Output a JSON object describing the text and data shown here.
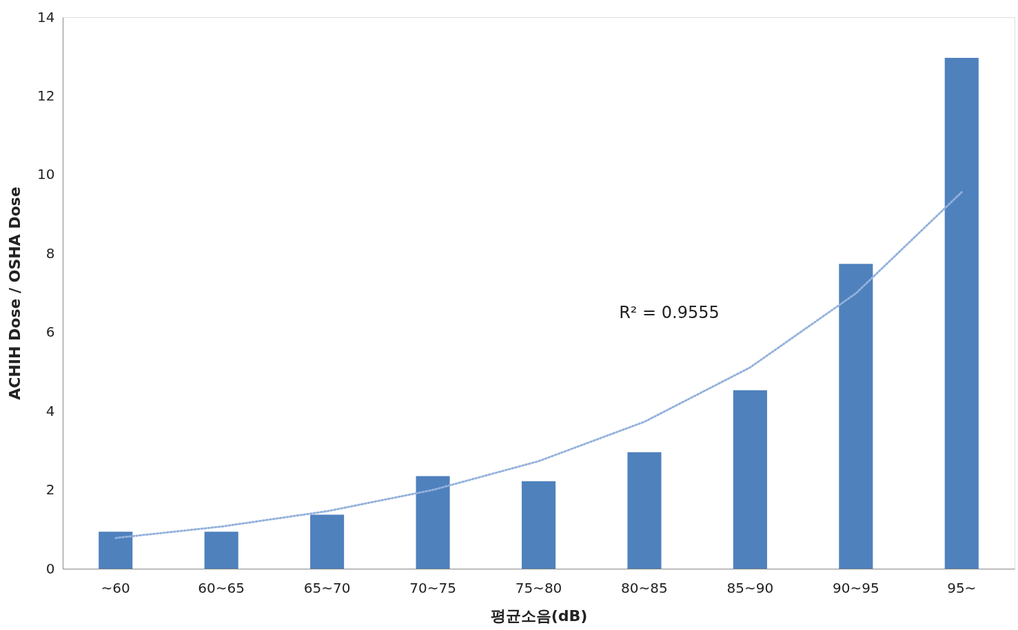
{
  "chart_data": {
    "type": "bar",
    "xlabel": "평균소음(dB)",
    "ylabel": "ACHIH Dose / OSHA Dose",
    "categories": [
      "~60",
      "60~65",
      "65~70",
      "70~75",
      "75~80",
      "80~85",
      "85~90",
      "90~95",
      "95~"
    ],
    "series": [
      {
        "color": "#4f81bd",
        "values": [
          0.94,
          0.94,
          1.37,
          2.35,
          2.22,
          2.96,
          4.53,
          7.74,
          12.97
        ]
      },
      {
        "type": "line",
        "color": "#93b1dc",
        "line_style": "dotted",
        "values": [
          0.78,
          1.07,
          1.46,
          2.0,
          2.73,
          3.73,
          5.11,
          6.99,
          9.56
        ]
      }
    ],
    "ylim": [
      0,
      14
    ],
    "yticks": [
      0,
      2,
      4,
      6,
      8,
      10,
      12,
      14
    ],
    "grid": false,
    "annotations": [
      "R² = 0.9555"
    ]
  }
}
